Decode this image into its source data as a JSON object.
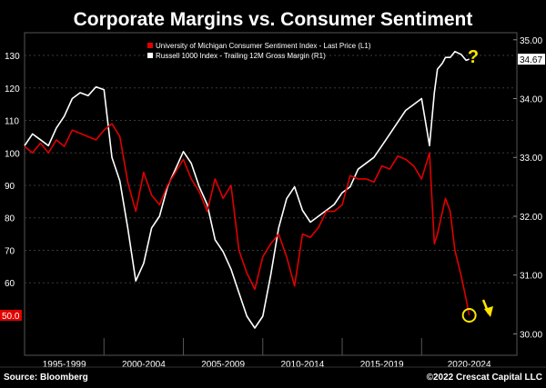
{
  "chart_data": {
    "type": "line",
    "title": "Corporate Margins vs. Consumer Sentiment",
    "x_periods": [
      "1995-1999",
      "2000-2004",
      "2005-2009",
      "2010-2014",
      "2015-2019",
      "2020-2024"
    ],
    "xlim": [
      1994.5,
      2025.5
    ],
    "y_left": {
      "ticks": [
        60,
        70,
        80,
        90,
        100,
        110,
        120,
        130
      ],
      "range": [
        43,
        137
      ]
    },
    "y_right": {
      "ticks": [
        "30.00",
        "31.00",
        "32.00",
        "33.00",
        "34.00",
        "35.00"
      ],
      "range": [
        29.93,
        35.12
      ]
    },
    "series": [
      {
        "name": "University of Michigan Consumer Sentiment Index - Last Price (L1)",
        "axis": "left",
        "color": "#e00000",
        "last_value_label": "50.0",
        "x": [
          1994.5,
          1995.0,
          1995.5,
          1996.0,
          1996.5,
          1997.0,
          1997.5,
          1998.0,
          1998.5,
          1999.0,
          1999.5,
          2000.0,
          2000.5,
          2001.0,
          2001.5,
          2002.0,
          2002.5,
          2003.0,
          2003.5,
          2004.0,
          2004.5,
          2005.0,
          2005.5,
          2006.0,
          2006.5,
          2007.0,
          2007.5,
          2008.0,
          2008.5,
          2009.0,
          2009.5,
          2010.0,
          2010.5,
          2011.0,
          2011.5,
          2012.0,
          2012.5,
          2013.0,
          2013.5,
          2014.0,
          2014.5,
          2015.0,
          2015.5,
          2016.0,
          2016.5,
          2017.0,
          2017.5,
          2018.0,
          2018.5,
          2019.0,
          2019.5,
          2020.0,
          2020.3,
          2020.5,
          2021.0,
          2021.3,
          2021.6,
          2022.0,
          2022.3,
          2022.5
        ],
        "values": [
          102,
          100,
          103,
          100,
          104,
          102,
          107,
          106,
          105,
          104,
          107,
          109,
          105,
          91,
          82,
          94,
          87,
          84,
          90,
          94,
          98,
          92,
          88,
          82,
          92,
          86,
          90,
          70,
          63,
          58,
          68,
          72,
          75,
          68,
          59,
          75,
          74,
          77,
          82,
          82,
          84,
          93,
          92,
          92,
          91,
          96,
          95,
          99,
          98,
          96,
          92,
          100,
          72,
          75,
          86,
          82,
          70,
          62,
          55,
          50
        ]
      },
      {
        "name": "Russell 1000 Index - Trailing 12M Gross Margin (R1)",
        "axis": "right",
        "color": "#ffffff",
        "last_value_label": "34.67",
        "x": [
          1994.5,
          1995.0,
          1995.5,
          1996.0,
          1996.5,
          1997.0,
          1997.5,
          1998.0,
          1998.5,
          1999.0,
          1999.5,
          2000.0,
          2000.5,
          2001.0,
          2001.5,
          2002.0,
          2002.5,
          2003.0,
          2003.5,
          2004.0,
          2004.5,
          2005.0,
          2005.5,
          2006.0,
          2006.5,
          2007.0,
          2007.5,
          2008.0,
          2008.5,
          2009.0,
          2009.5,
          2010.0,
          2010.5,
          2011.0,
          2011.5,
          2012.0,
          2012.5,
          2013.0,
          2013.5,
          2014.0,
          2014.5,
          2015.0,
          2015.5,
          2016.0,
          2016.5,
          2017.0,
          2017.5,
          2018.0,
          2018.5,
          2019.0,
          2019.5,
          2020.0,
          2020.3,
          2020.5,
          2020.8,
          2021.0,
          2021.3,
          2021.6,
          2022.0,
          2022.3,
          2022.5
        ],
        "values": [
          33.2,
          33.4,
          33.3,
          33.2,
          33.5,
          33.7,
          34.0,
          34.1,
          34.05,
          34.2,
          34.15,
          33.0,
          32.6,
          31.8,
          30.9,
          31.2,
          31.8,
          32.0,
          32.5,
          32.8,
          33.1,
          32.9,
          32.5,
          32.2,
          31.6,
          31.4,
          31.1,
          30.7,
          30.3,
          30.1,
          30.3,
          31.0,
          31.8,
          32.3,
          32.5,
          32.1,
          31.9,
          32.0,
          32.1,
          32.2,
          32.4,
          32.5,
          32.8,
          32.9,
          33.0,
          33.2,
          33.4,
          33.6,
          33.8,
          33.9,
          34.0,
          33.2,
          34.1,
          34.5,
          34.6,
          34.7,
          34.7,
          34.8,
          34.75,
          34.65,
          34.67
        ]
      }
    ],
    "annotations": [
      "?"
    ]
  },
  "footer": {
    "source": "Source: Bloomberg",
    "copyright": "©2022 Crescat Capital LLC"
  }
}
